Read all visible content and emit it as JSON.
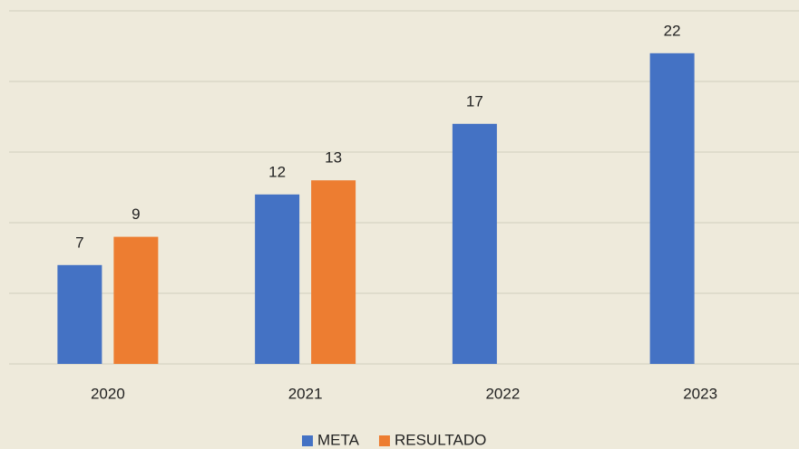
{
  "chart_data": {
    "type": "bar",
    "categories": [
      "2020",
      "2021",
      "2022",
      "2023"
    ],
    "series": [
      {
        "name": "META",
        "color": "#4472c4",
        "values": [
          7,
          12,
          17,
          22
        ]
      },
      {
        "name": "RESULTADO",
        "color": "#ed7d31",
        "values": [
          9,
          13,
          null,
          null
        ]
      }
    ],
    "ylim": [
      0,
      25
    ],
    "yticks": [
      0,
      5,
      10,
      15,
      20,
      25
    ],
    "grid": true,
    "legend": "bottom"
  }
}
